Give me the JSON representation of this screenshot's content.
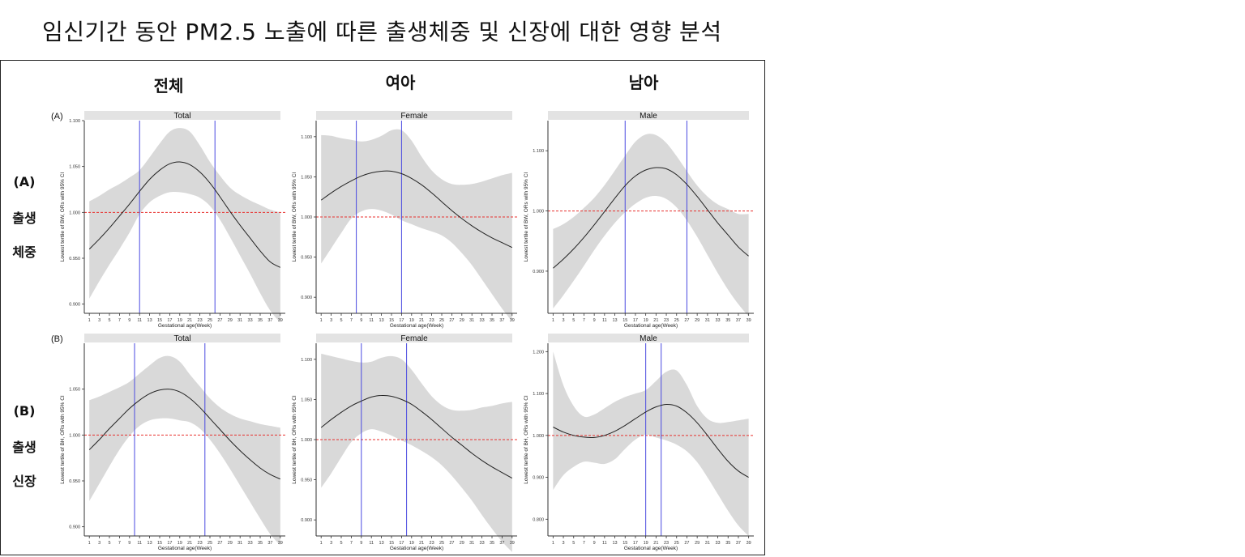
{
  "title": "임신기간 동안 PM2.5 노출에 따른 출생체중 및 신장에 대한 영향 분석",
  "column_headers": [
    "전체",
    "여아",
    "남아"
  ],
  "rows": [
    {
      "tag": "(A)",
      "label_line1": "출생",
      "label_line2": "체중",
      "panel_tag": "(A)"
    },
    {
      "tag": "(B)",
      "label_line1": "출생",
      "label_line2": "신장",
      "panel_tag": "(B)"
    }
  ],
  "colors": {
    "band": "#d9d9d9",
    "curve": "#222222",
    "ref_line": "#e8312f",
    "window_line": "#4a4ae0",
    "strip": "#e3e3e3"
  },
  "chart_data": [
    {
      "type": "line",
      "strip": "Total",
      "xlabel": "Gestational age(Week)",
      "ylabel": "Lowest  tertile of BW, ORs with 95% CI",
      "xlim": [
        0,
        40
      ],
      "ylim": [
        0.89,
        1.1
      ],
      "yticks": [
        0.9,
        0.95,
        1.0,
        1.05,
        1.1
      ],
      "xticks": [
        1,
        3,
        5,
        7,
        9,
        11,
        13,
        15,
        17,
        19,
        21,
        23,
        25,
        27,
        29,
        31,
        33,
        35,
        37,
        39
      ],
      "reference_y": 1.0,
      "window": [
        11,
        26
      ],
      "x": [
        1,
        3,
        5,
        7,
        9,
        11,
        13,
        15,
        17,
        19,
        21,
        23,
        25,
        27,
        29,
        31,
        33,
        35,
        37,
        39
      ],
      "or": [
        0.96,
        0.971,
        0.983,
        0.996,
        1.009,
        1.023,
        1.036,
        1.046,
        1.053,
        1.055,
        1.052,
        1.044,
        1.032,
        1.017,
        1.001,
        0.986,
        0.972,
        0.958,
        0.946,
        0.94
      ],
      "upper": [
        1.012,
        1.018,
        1.025,
        1.031,
        1.038,
        1.046,
        1.06,
        1.075,
        1.088,
        1.092,
        1.088,
        1.073,
        1.055,
        1.04,
        1.027,
        1.019,
        1.013,
        1.008,
        1.003,
        1.0
      ],
      "lower": [
        0.906,
        0.925,
        0.943,
        0.96,
        0.978,
        0.998,
        1.011,
        1.018,
        1.022,
        1.022,
        1.02,
        1.016,
        1.007,
        0.992,
        0.973,
        0.953,
        0.933,
        0.912,
        0.893,
        0.88
      ]
    },
    {
      "type": "line",
      "strip": "Female",
      "xlabel": "Gestational age(Week)",
      "ylabel": "Lowest  tertile of BW, ORs with 95% CI",
      "xlim": [
        0,
        40
      ],
      "ylim": [
        0.88,
        1.12
      ],
      "yticks": [
        0.9,
        0.95,
        1.0,
        1.05,
        1.1
      ],
      "xticks": [
        1,
        3,
        5,
        7,
        9,
        11,
        13,
        15,
        17,
        19,
        21,
        23,
        25,
        27,
        29,
        31,
        33,
        35,
        37,
        39
      ],
      "reference_y": 1.0,
      "window": [
        8,
        17
      ],
      "x": [
        1,
        3,
        5,
        7,
        9,
        11,
        13,
        15,
        17,
        19,
        21,
        23,
        25,
        27,
        29,
        31,
        33,
        35,
        37,
        39
      ],
      "or": [
        1.021,
        1.03,
        1.038,
        1.045,
        1.051,
        1.055,
        1.057,
        1.057,
        1.054,
        1.048,
        1.04,
        1.03,
        1.019,
        1.008,
        0.998,
        0.989,
        0.981,
        0.974,
        0.968,
        0.962
      ],
      "upper": [
        1.102,
        1.101,
        1.098,
        1.096,
        1.094,
        1.096,
        1.101,
        1.108,
        1.108,
        1.095,
        1.075,
        1.058,
        1.047,
        1.041,
        1.04,
        1.041,
        1.044,
        1.048,
        1.052,
        1.055
      ],
      "lower": [
        0.942,
        0.961,
        0.98,
        0.998,
        1.007,
        1.01,
        1.008,
        1.003,
        0.996,
        0.991,
        0.986,
        0.982,
        0.977,
        0.968,
        0.955,
        0.94,
        0.922,
        0.904,
        0.886,
        0.87
      ]
    },
    {
      "type": "line",
      "strip": "Male",
      "xlabel": "Gestational age(Week)",
      "ylabel": "Lowest  tertile of BW, ORs with 95% CI",
      "xlim": [
        0,
        40
      ],
      "ylim": [
        0.83,
        1.15
      ],
      "yticks": [
        0.9,
        1.0,
        1.1
      ],
      "xticks": [
        1,
        3,
        5,
        7,
        9,
        11,
        13,
        15,
        17,
        19,
        21,
        23,
        25,
        27,
        29,
        31,
        33,
        35,
        37,
        39
      ],
      "reference_y": 1.0,
      "window": [
        15,
        27
      ],
      "x": [
        1,
        3,
        5,
        7,
        9,
        11,
        13,
        15,
        17,
        19,
        21,
        23,
        25,
        27,
        29,
        31,
        33,
        35,
        37,
        39
      ],
      "or": [
        0.905,
        0.92,
        0.937,
        0.956,
        0.977,
        0.999,
        1.021,
        1.042,
        1.058,
        1.068,
        1.072,
        1.07,
        1.06,
        1.044,
        1.024,
        1.002,
        0.98,
        0.96,
        0.94,
        0.925
      ],
      "upper": [
        0.97,
        0.978,
        0.99,
        1.005,
        1.022,
        1.043,
        1.067,
        1.092,
        1.115,
        1.127,
        1.126,
        1.113,
        1.091,
        1.066,
        1.042,
        1.024,
        1.011,
        1.003,
        0.995,
        0.995
      ],
      "lower": [
        0.838,
        0.86,
        0.884,
        0.909,
        0.935,
        0.959,
        0.98,
        0.998,
        1.012,
        1.022,
        1.025,
        1.02,
        1.006,
        0.984,
        0.957,
        0.927,
        0.897,
        0.869,
        0.845,
        0.825
      ]
    },
    {
      "type": "line",
      "strip": "Total",
      "xlabel": "Gestational age(Week)",
      "ylabel": "Lowest  tertile of BH, ORs with 95% CI",
      "xlim": [
        0,
        40
      ],
      "ylim": [
        0.89,
        1.1
      ],
      "yticks": [
        0.9,
        0.95,
        1.0,
        1.05
      ],
      "xticks": [
        1,
        3,
        5,
        7,
        9,
        11,
        13,
        15,
        17,
        19,
        21,
        23,
        25,
        27,
        29,
        31,
        33,
        35,
        37,
        39
      ],
      "reference_y": 1.0,
      "window": [
        10,
        24
      ],
      "x": [
        1,
        3,
        5,
        7,
        9,
        11,
        13,
        15,
        17,
        19,
        21,
        23,
        25,
        27,
        29,
        31,
        33,
        35,
        37,
        39
      ],
      "or": [
        0.984,
        0.995,
        1.007,
        1.018,
        1.029,
        1.038,
        1.045,
        1.049,
        1.05,
        1.047,
        1.04,
        1.03,
        1.018,
        1.006,
        0.994,
        0.983,
        0.973,
        0.964,
        0.957,
        0.952
      ],
      "upper": [
        1.038,
        1.042,
        1.047,
        1.052,
        1.058,
        1.067,
        1.076,
        1.084,
        1.086,
        1.08,
        1.066,
        1.053,
        1.04,
        1.03,
        1.023,
        1.018,
        1.015,
        1.012,
        1.01,
        1.008
      ],
      "lower": [
        0.928,
        0.947,
        0.966,
        0.984,
        0.999,
        1.01,
        1.016,
        1.018,
        1.018,
        1.016,
        1.014,
        1.007,
        0.995,
        0.98,
        0.963,
        0.945,
        0.927,
        0.909,
        0.892,
        0.88
      ]
    },
    {
      "type": "line",
      "strip": "Female",
      "xlabel": "Gestational age(Week)",
      "ylabel": "Lowest  tertile of BH, ORs with 95% CI",
      "xlim": [
        0,
        40
      ],
      "ylim": [
        0.88,
        1.12
      ],
      "yticks": [
        0.9,
        0.95,
        1.0,
        1.05,
        1.1
      ],
      "xticks": [
        1,
        3,
        5,
        7,
        9,
        11,
        13,
        15,
        17,
        19,
        21,
        23,
        25,
        27,
        29,
        31,
        33,
        35,
        37,
        39
      ],
      "reference_y": 1.0,
      "window": [
        9,
        18
      ],
      "x": [
        1,
        3,
        5,
        7,
        9,
        11,
        13,
        15,
        17,
        19,
        21,
        23,
        25,
        27,
        29,
        31,
        33,
        35,
        37,
        39
      ],
      "or": [
        1.015,
        1.025,
        1.034,
        1.042,
        1.048,
        1.053,
        1.055,
        1.054,
        1.05,
        1.044,
        1.035,
        1.025,
        1.014,
        1.003,
        0.993,
        0.983,
        0.974,
        0.966,
        0.959,
        0.952
      ],
      "upper": [
        1.107,
        1.104,
        1.101,
        1.098,
        1.096,
        1.097,
        1.102,
        1.104,
        1.1,
        1.087,
        1.07,
        1.054,
        1.043,
        1.037,
        1.036,
        1.037,
        1.04,
        1.042,
        1.045,
        1.047
      ],
      "lower": [
        0.94,
        0.958,
        0.978,
        0.997,
        1.008,
        1.013,
        1.01,
        1.005,
        0.999,
        0.993,
        0.986,
        0.978,
        0.968,
        0.955,
        0.94,
        0.924,
        0.906,
        0.889,
        0.873,
        0.86
      ]
    },
    {
      "type": "line",
      "strip": "Male",
      "xlabel": "Gestational age(Week)",
      "ylabel": "Lowest  tertile of BH, ORs with 95% CI",
      "xlim": [
        0,
        40
      ],
      "ylim": [
        0.76,
        1.22
      ],
      "yticks": [
        0.8,
        0.9,
        1.0,
        1.1,
        1.2
      ],
      "xticks": [
        1,
        3,
        5,
        7,
        9,
        11,
        13,
        15,
        17,
        19,
        21,
        23,
        25,
        27,
        29,
        31,
        33,
        35,
        37,
        39
      ],
      "reference_y": 1.0,
      "window": [
        19,
        22
      ],
      "x": [
        1,
        3,
        5,
        7,
        9,
        11,
        13,
        15,
        17,
        19,
        21,
        23,
        25,
        27,
        29,
        31,
        33,
        35,
        37,
        39
      ],
      "or": [
        1.02,
        1.008,
        1.0,
        0.996,
        0.995,
        1.0,
        1.01,
        1.024,
        1.04,
        1.056,
        1.068,
        1.074,
        1.07,
        1.054,
        1.03,
        1.0,
        0.968,
        0.938,
        0.915,
        0.9
      ],
      "upper": [
        1.2,
        1.12,
        1.07,
        1.045,
        1.05,
        1.065,
        1.08,
        1.092,
        1.1,
        1.108,
        1.13,
        1.152,
        1.155,
        1.12,
        1.07,
        1.04,
        1.03,
        1.032,
        1.036,
        1.04
      ],
      "lower": [
        0.87,
        0.905,
        0.925,
        0.937,
        0.935,
        0.932,
        0.943,
        0.968,
        0.99,
        1.002,
        0.995,
        0.988,
        0.978,
        0.962,
        0.936,
        0.9,
        0.86,
        0.82,
        0.785,
        0.76
      ]
    }
  ]
}
